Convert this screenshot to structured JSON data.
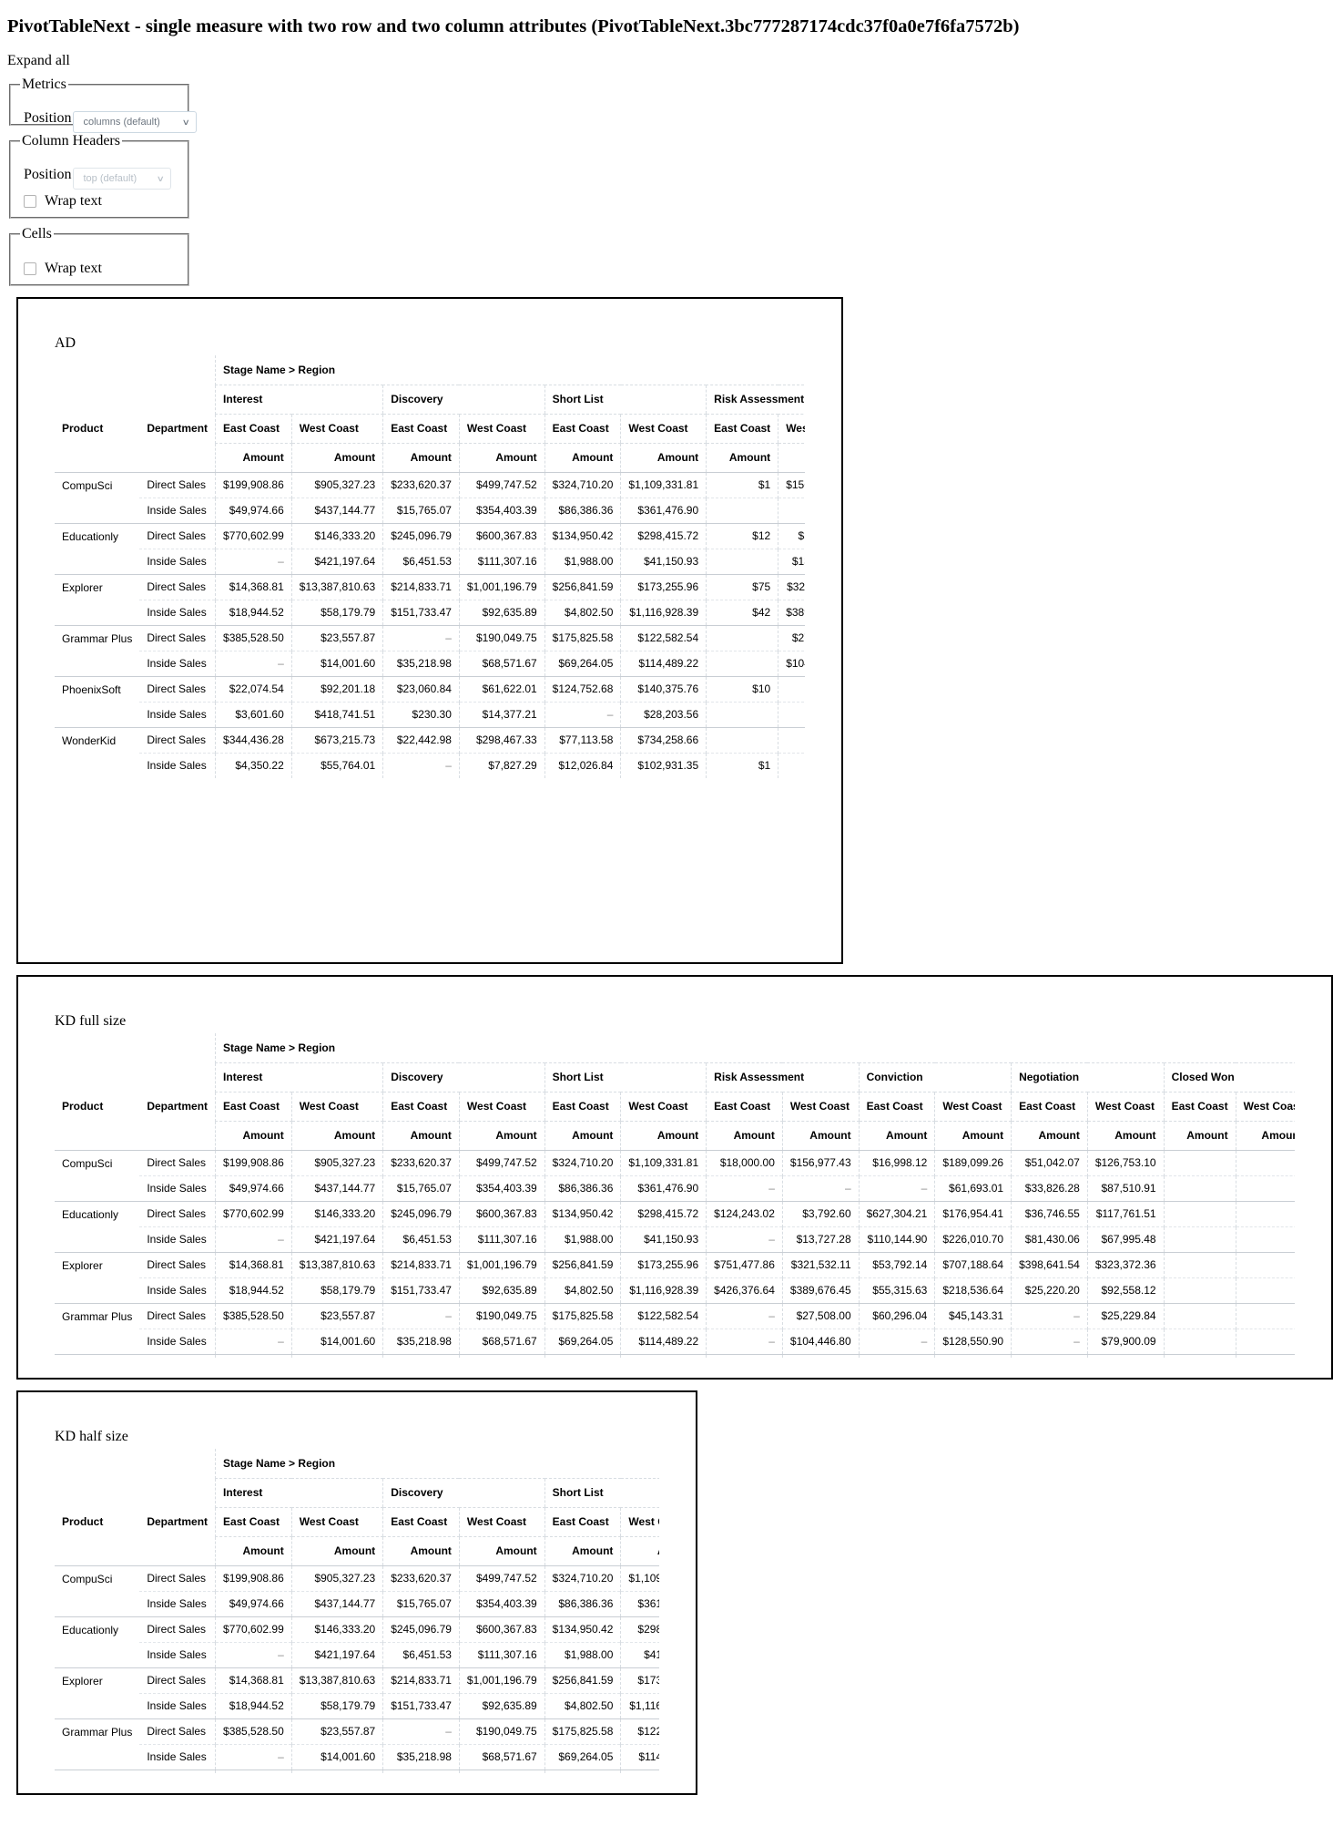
{
  "page_title": "PivotTableNext - single measure with two row and two column attributes (PivotTableNext.3bc777287174cdc37f0a0e7f6fa7572b)",
  "expand_all": "Expand all",
  "controls": {
    "metrics": {
      "legend": "Metrics",
      "position_label": "Position",
      "position_value": "columns (default)"
    },
    "column_headers": {
      "legend": "Column Headers",
      "position_label": "Position",
      "position_value": "top (default)",
      "wrap_label": "Wrap text"
    },
    "cells": {
      "legend": "Cells",
      "wrap_label": "Wrap text"
    }
  },
  "table_labels": {
    "col_attr_path": "Stage Name > Region",
    "row_attr_product": "Product",
    "row_attr_department": "Department",
    "measure": "Amount"
  },
  "stages": [
    "Interest",
    "Discovery",
    "Short List",
    "Risk Assessment",
    "Conviction",
    "Negotiation",
    "Closed Won"
  ],
  "regions": [
    "East Coast",
    "West Coast"
  ],
  "rows": [
    {
      "product": "CompuSci",
      "department": "Direct Sales",
      "values": [
        "$199,908.86",
        "$905,327.23",
        "$233,620.37",
        "$499,747.52",
        "$324,710.20",
        "$1,109,331.81",
        "$18,000.00",
        "$156,977.43",
        "$16,998.12",
        "$189,099.26",
        "$51,042.07",
        "$126,753.10"
      ]
    },
    {
      "product": "CompuSci",
      "department": "Inside Sales",
      "values": [
        "$49,974.66",
        "$437,144.77",
        "$15,765.07",
        "$354,403.39",
        "$86,386.36",
        "$361,476.90",
        "–",
        "–",
        "–",
        "$61,693.01",
        "$33,826.28",
        "$87,510.91"
      ]
    },
    {
      "product": "Educationly",
      "department": "Direct Sales",
      "values": [
        "$770,602.99",
        "$146,333.20",
        "$245,096.79",
        "$600,367.83",
        "$134,950.42",
        "$298,415.72",
        "$124,243.02",
        "$3,792.60",
        "$627,304.21",
        "$176,954.41",
        "$36,746.55",
        "$117,761.51"
      ]
    },
    {
      "product": "Educationly",
      "department": "Inside Sales",
      "values": [
        "–",
        "$421,197.64",
        "$6,451.53",
        "$111,307.16",
        "$1,988.00",
        "$41,150.93",
        "–",
        "$13,727.28",
        "$110,144.90",
        "$226,010.70",
        "$81,430.06",
        "$67,995.48"
      ]
    },
    {
      "product": "Explorer",
      "department": "Direct Sales",
      "values": [
        "$14,368.81",
        "$13,387,810.63",
        "$214,833.71",
        "$1,001,196.79",
        "$256,841.59",
        "$173,255.96",
        "$751,477.86",
        "$321,532.11",
        "$53,792.14",
        "$707,188.64",
        "$398,641.54",
        "$323,372.36"
      ]
    },
    {
      "product": "Explorer",
      "department": "Inside Sales",
      "values": [
        "$18,944.52",
        "$58,179.79",
        "$151,733.47",
        "$92,635.89",
        "$4,802.50",
        "$1,116,928.39",
        "$426,376.64",
        "$389,676.45",
        "$55,315.63",
        "$218,536.64",
        "$25,220.20",
        "$92,558.12"
      ]
    },
    {
      "product": "Grammar Plus",
      "department": "Direct Sales",
      "values": [
        "$385,528.50",
        "$23,557.87",
        "–",
        "$190,049.75",
        "$175,825.58",
        "$122,582.54",
        "–",
        "$27,508.00",
        "$60,296.04",
        "$45,143.31",
        "–",
        "$25,229.84"
      ]
    },
    {
      "product": "Grammar Plus",
      "department": "Inside Sales",
      "values": [
        "–",
        "$14,001.60",
        "$35,218.98",
        "$68,571.67",
        "$69,264.05",
        "$114,489.22",
        "–",
        "$104,446.80",
        "–",
        "$128,550.90",
        "–",
        "$79,900.09"
      ]
    },
    {
      "product": "PhoenixSoft",
      "department": "Direct Sales",
      "values": [
        "$22,074.54",
        "$92,201.18",
        "$23,060.84",
        "$61,622.01",
        "$124,752.68",
        "$140,375.76",
        "$10",
        "",
        "",
        "",
        "",
        ""
      ]
    },
    {
      "product": "PhoenixSoft",
      "department": "Inside Sales",
      "values": [
        "$3,601.60",
        "$418,741.51",
        "$230.30",
        "$14,377.21",
        "–",
        "$28,203.56",
        "",
        "",
        "",
        "",
        "",
        ""
      ]
    },
    {
      "product": "WonderKid",
      "department": "Direct Sales",
      "values": [
        "$344,436.28",
        "$673,215.73",
        "$22,442.98",
        "$298,467.33",
        "$77,113.58",
        "$734,258.66",
        "",
        "",
        "",
        "",
        "",
        ""
      ]
    },
    {
      "product": "WonderKid",
      "department": "Inside Sales",
      "values": [
        "$4,350.22",
        "$55,764.01",
        "–",
        "$7,827.29",
        "$12,026.84",
        "$102,931.35",
        "$1",
        "",
        "",
        "",
        "",
        ""
      ]
    }
  ],
  "ad_partial_values": [
    "$1",
    "",
    "$12",
    "",
    "$75",
    "$42",
    "",
    "",
    "$10",
    "",
    "",
    "$1"
  ],
  "scenarios": [
    {
      "title": "AD"
    },
    {
      "title": "KD full size"
    },
    {
      "title": "KD half size"
    }
  ]
}
